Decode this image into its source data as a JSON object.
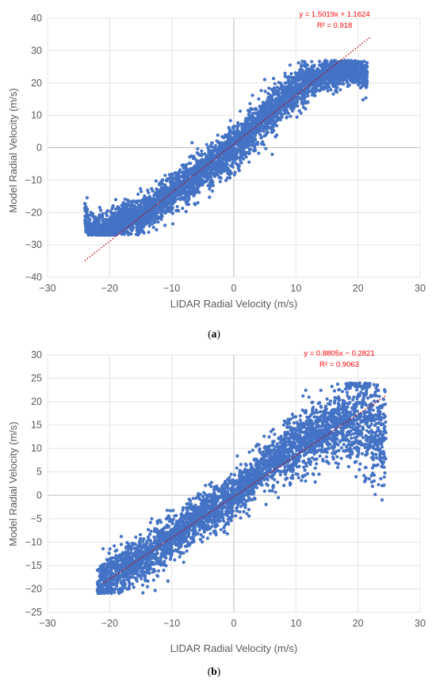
{
  "chart_data": [
    {
      "type": "scatter",
      "panel_label": "a",
      "xlabel": "LIDAR Radial Velocity (m/s)",
      "ylabel": "Model Radial Velocity (m/s)",
      "xlim": [
        -30,
        30
      ],
      "ylim": [
        -40,
        40
      ],
      "x_ticks": [
        -30,
        -20,
        -10,
        0,
        10,
        20,
        30
      ],
      "y_ticks": [
        -40,
        -30,
        -20,
        -10,
        0,
        10,
        20,
        30,
        40
      ],
      "x_tick_labels": [
        "−30",
        "−20",
        "−10",
        "0",
        "10",
        "20",
        "30"
      ],
      "y_tick_labels": [
        "−40",
        "−30",
        "−20",
        "−10",
        "0",
        "10",
        "20",
        "30",
        "40"
      ],
      "grid": true,
      "marker_color": "#4472c4",
      "trendline": {
        "slope": 1.5019,
        "intercept": 1.1624,
        "x_range": [
          -24,
          22
        ],
        "color": "#c00000",
        "style": "dotted",
        "equation_text": "y = 1.5019x + 1.1624",
        "r2_text": "R² = 0.918"
      },
      "point_cloud": {
        "description_points": [
          [
            -24,
            -21
          ],
          [
            -23,
            -26.5
          ],
          [
            -20,
            -25
          ],
          [
            -18,
            -22
          ],
          [
            -15,
            -21
          ],
          [
            -12,
            -17
          ],
          [
            -10,
            -14
          ],
          [
            -8,
            -11
          ],
          [
            -5,
            -7
          ],
          [
            -2,
            -3
          ],
          [
            0,
            0
          ],
          [
            2,
            4
          ],
          [
            4,
            8
          ],
          [
            6,
            11
          ],
          [
            8,
            15
          ],
          [
            10,
            18
          ],
          [
            12,
            21
          ],
          [
            14,
            22
          ],
          [
            16,
            23
          ],
          [
            18,
            24
          ],
          [
            21,
            23
          ]
        ],
        "x_extent": [
          -24,
          21.5
        ],
        "y_extent": [
          -27,
          27
        ],
        "count_estimate": 4200
      }
    },
    {
      "type": "scatter",
      "panel_label": "b",
      "xlabel": "LIDAR Radial Velocity (m/s)",
      "ylabel": "Model Radial Velocity (m/s)",
      "xlim": [
        -30,
        30
      ],
      "ylim": [
        -25,
        30
      ],
      "x_ticks": [
        -30,
        -20,
        -10,
        0,
        10,
        20,
        30
      ],
      "y_ticks": [
        -25,
        -20,
        -15,
        -10,
        -5,
        0,
        5,
        10,
        15,
        20,
        25,
        30
      ],
      "x_tick_labels": [
        "−30",
        "−20",
        "−10",
        "0",
        "10",
        "20",
        "30"
      ],
      "y_tick_labels": [
        "−25",
        "−20",
        "−15",
        "−10",
        "−5",
        "0",
        "5",
        "10",
        "15",
        "20",
        "25",
        "30"
      ],
      "grid": true,
      "marker_color": "#4472c4",
      "trendline": {
        "slope": 0.8805,
        "intercept": -0.2821,
        "x_range": [
          -21,
          24.5
        ],
        "color": "#c00000",
        "style": "dotted",
        "equation_text": "y = 0.8805x − 0.2821",
        "r2_text": "R² = 0.9063"
      },
      "point_cloud": {
        "description_points": [
          [
            -22,
            -19
          ],
          [
            -20,
            -17
          ],
          [
            -18,
            -16
          ],
          [
            -15,
            -14
          ],
          [
            -12,
            -11
          ],
          [
            -10,
            -9
          ],
          [
            -8,
            -7
          ],
          [
            -5,
            -4
          ],
          [
            -2,
            -2
          ],
          [
            0,
            0
          ],
          [
            2,
            2
          ],
          [
            4,
            5
          ],
          [
            6,
            7
          ],
          [
            8,
            9
          ],
          [
            10,
            10
          ],
          [
            12,
            12
          ],
          [
            14,
            13
          ],
          [
            16,
            15
          ],
          [
            18,
            16
          ],
          [
            20,
            17
          ],
          [
            22,
            15
          ],
          [
            24.5,
            11.5
          ]
        ],
        "x_extent": [
          -22,
          24.5
        ],
        "y_extent": [
          -21,
          24
        ],
        "count_estimate": 3600
      }
    }
  ]
}
